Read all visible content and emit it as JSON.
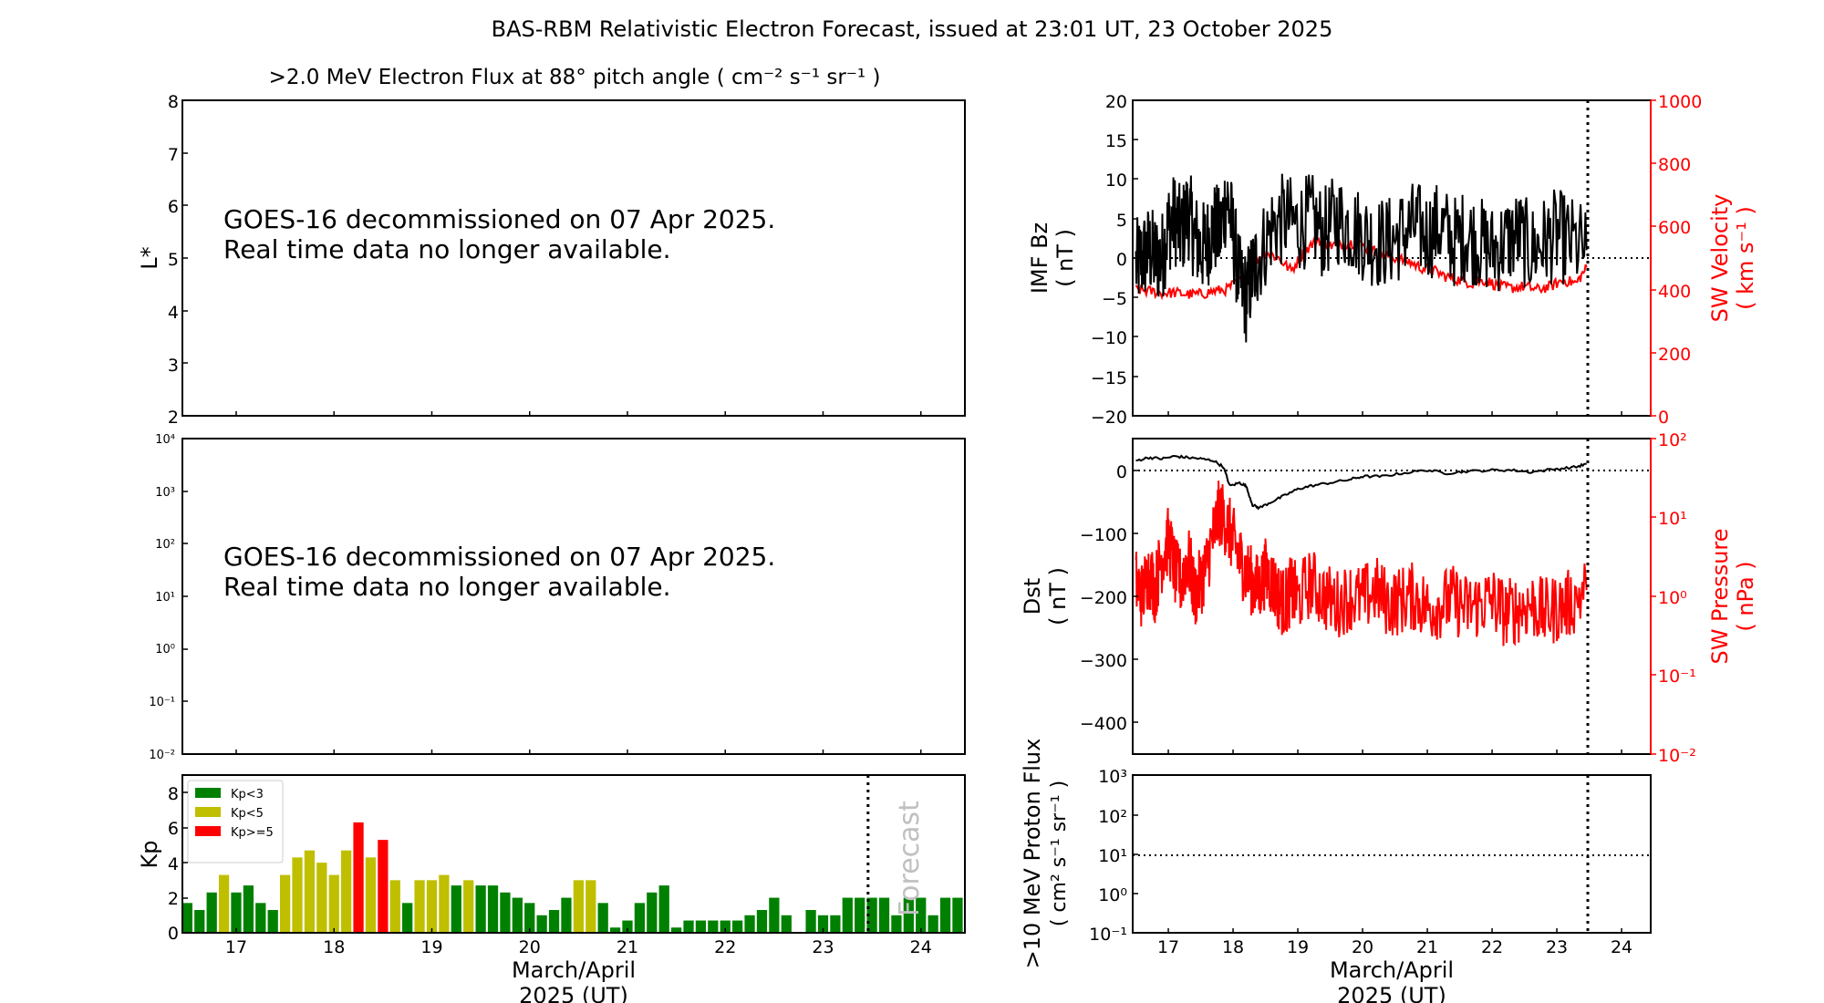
{
  "main_title": "BAS-RBM Relativistic Electron Forecast, issued at 23:01 UT, 23 October 2025",
  "x_axis": {
    "day_ticks": [
      "17",
      "18",
      "19",
      "20",
      "21",
      "22",
      "23",
      "24"
    ],
    "xlabel_line1": "March/April",
    "xlabel_line2": "2025 (UT)"
  },
  "lstar_panel": {
    "title": ">2.0 MeV Electron Flux at 88° pitch angle ( cm⁻² s⁻¹ sr⁻¹ )",
    "ylabel": "L*",
    "yticks": [
      "8",
      "7",
      "6",
      "5",
      "4",
      "3",
      "2"
    ],
    "message_line1": "GOES-16 decommissioned on 07 Apr 2025.",
    "message_line2": "Real time data no longer available."
  },
  "flux_panel": {
    "yticks": [
      "10⁴",
      "10³",
      "10²",
      "10¹",
      "10⁰",
      "10⁻¹",
      "10⁻²"
    ],
    "message_line1": "GOES-16 decommissioned on 07 Apr 2025.",
    "message_line2": "Real time data no longer available."
  },
  "kp_panel": {
    "ylabel": "Kp",
    "yticks": [
      "8",
      "6",
      "4",
      "2",
      "0"
    ],
    "forecast_label": "Forecast",
    "legend": [
      {
        "label": "Kp<3",
        "color": "#008000"
      },
      {
        "label": "Kp<5",
        "color": "#bfbf00"
      },
      {
        "label": "Kp>=5",
        "color": "#ff0000"
      }
    ]
  },
  "bz_panel": {
    "ylabel_line1": "IMF Bz",
    "ylabel_line2": "( nT )",
    "right_ylabel_line1": "SW Velocity",
    "right_ylabel_line2": "( km s⁻¹ )",
    "yticks": [
      "20",
      "15",
      "10",
      "5",
      "0",
      "−5",
      "−10",
      "−15",
      "−20"
    ],
    "right_yticks": [
      "1000",
      "800",
      "600",
      "400",
      "200",
      "0"
    ]
  },
  "dst_panel": {
    "ylabel_line1": "Dst",
    "ylabel_line2": "( nT )",
    "right_ylabel_line1": "SW Pressure",
    "right_ylabel_line2": "( nPa )",
    "yticks": [
      "0",
      "−100",
      "−200",
      "−300",
      "−400"
    ],
    "right_yticks": [
      "10²",
      "10¹",
      "10⁰",
      "10⁻¹",
      "10⁻²"
    ]
  },
  "proton_panel": {
    "ylabel_line1": ">10 MeV Proton Flux",
    "ylabel_line2": "( cm² s⁻¹ sr⁻¹ )",
    "yticks": [
      "10³",
      "10²",
      "10¹",
      "10⁰",
      "10⁻¹"
    ]
  },
  "chart_data": [
    {
      "type": "bar",
      "panel": "kp",
      "x_range_days": [
        16.45,
        24.45
      ],
      "ylim": [
        0,
        9
      ],
      "bar_width_days": 0.105,
      "forecast_start_day": 23.46,
      "thresholds": {
        "green_below": 3,
        "yellow_below": 5
      },
      "x_start_day": 16.5,
      "x_step_days": 0.125,
      "values": [
        1.7,
        1.3,
        2.3,
        3.3,
        2.3,
        2.7,
        1.7,
        1.3,
        3.3,
        4.3,
        4.7,
        4.0,
        3.3,
        4.7,
        6.3,
        4.3,
        5.3,
        3.0,
        1.7,
        3.0,
        3.0,
        3.3,
        2.7,
        3.0,
        2.7,
        2.7,
        2.3,
        2.0,
        1.7,
        1.0,
        1.3,
        2.0,
        3.0,
        3.0,
        1.7,
        0.3,
        0.7,
        1.7,
        2.3,
        2.7,
        0.3,
        0.7,
        0.7,
        0.7,
        0.7,
        0.7,
        1.0,
        1.3,
        2.0,
        1.0,
        0.0,
        1.3,
        1.0,
        1.0,
        2.0,
        2.0,
        2.0,
        2.0,
        1.0,
        2.0,
        2.0,
        1.0,
        2.0,
        2.0
      ]
    },
    {
      "type": "line",
      "panel": "bz_velocity",
      "x_range_days": [
        16.45,
        24.45
      ],
      "end_day": 23.46,
      "series": [
        {
          "name": "IMF Bz",
          "axis": "left",
          "ylim": [
            -20,
            20
          ],
          "color": "#000000",
          "x": [
            16.5,
            16.6,
            16.7,
            16.8,
            16.9,
            17.0,
            17.1,
            17.2,
            17.3,
            17.4,
            17.5,
            17.6,
            17.7,
            17.8,
            17.9,
            18.0,
            18.1,
            18.2,
            18.3,
            18.4,
            18.6,
            18.8,
            19.0,
            19.2,
            19.4,
            19.6,
            19.8,
            20.0,
            20.2,
            20.4,
            20.6,
            20.8,
            21.0,
            21.2,
            21.4,
            21.6,
            21.8,
            22.0,
            22.2,
            22.4,
            22.6,
            22.8,
            23.0,
            23.2,
            23.46
          ],
          "y": [
            -1,
            0,
            1,
            0,
            0,
            4,
            5,
            3,
            6,
            3,
            1,
            2,
            4,
            3,
            8,
            3,
            -3,
            -5,
            -2,
            0,
            4,
            5,
            4,
            5,
            3,
            5,
            4,
            3,
            2,
            2,
            3,
            4,
            3,
            4,
            2,
            3,
            2,
            1,
            2,
            3,
            1,
            2,
            3,
            2,
            1
          ]
        },
        {
          "name": "SW Velocity",
          "axis": "right",
          "ylim": [
            0,
            1000
          ],
          "color": "#ff0000",
          "x": [
            16.5,
            16.7,
            16.9,
            17.1,
            17.3,
            17.5,
            17.7,
            17.9,
            18.1,
            18.3,
            18.5,
            18.7,
            18.9,
            19.1,
            19.3,
            19.5,
            19.7,
            19.9,
            20.1,
            20.3,
            20.5,
            20.7,
            20.9,
            21.1,
            21.3,
            21.5,
            21.7,
            21.9,
            22.1,
            22.3,
            22.5,
            22.7,
            22.9,
            23.1,
            23.3,
            23.46
          ],
          "y": [
            400,
            395,
            390,
            390,
            385,
            385,
            395,
            400,
            430,
            480,
            520,
            500,
            460,
            520,
            560,
            540,
            545,
            550,
            530,
            510,
            500,
            490,
            470,
            460,
            440,
            430,
            420,
            430,
            410,
            405,
            410,
            400,
            410,
            430,
            420,
            470
          ]
        }
      ],
      "reference_lines": {
        "bz_zero": 0
      }
    },
    {
      "type": "line",
      "panel": "dst_pressure",
      "x_range_days": [
        16.45,
        24.45
      ],
      "end_day": 23.46,
      "series": [
        {
          "name": "Dst",
          "axis": "left",
          "ylim": [
            -450,
            50
          ],
          "color": "#000000",
          "x": [
            16.5,
            16.7,
            16.9,
            17.1,
            17.3,
            17.5,
            17.7,
            17.85,
            17.95,
            18.1,
            18.2,
            18.3,
            18.4,
            18.6,
            18.8,
            19.0,
            19.2,
            19.5,
            19.8,
            20.0,
            20.3,
            20.6,
            21.0,
            21.3,
            21.6,
            22.0,
            22.3,
            22.6,
            23.0,
            23.3,
            23.46
          ],
          "y": [
            15,
            20,
            18,
            22,
            20,
            18,
            15,
            5,
            -25,
            -20,
            -25,
            -55,
            -60,
            -50,
            -40,
            -30,
            -25,
            -20,
            -15,
            -10,
            -10,
            -5,
            0,
            -5,
            -2,
            0,
            0,
            -3,
            2,
            5,
            10
          ]
        },
        {
          "name": "SW Pressure",
          "axis": "right",
          "scale": "log",
          "ylim": [
            0.01,
            100
          ],
          "color": "#ff0000",
          "x": [
            16.5,
            16.6,
            16.7,
            16.8,
            16.9,
            17.0,
            17.1,
            17.2,
            17.3,
            17.4,
            17.5,
            17.6,
            17.7,
            17.8,
            17.9,
            18.0,
            18.1,
            18.2,
            18.3,
            18.4,
            18.5,
            18.6,
            18.7,
            18.8,
            18.9,
            19.0,
            19.2,
            19.4,
            19.6,
            19.8,
            20.0,
            20.2,
            20.4,
            20.6,
            20.8,
            21.0,
            21.2,
            21.4,
            21.6,
            21.8,
            22.0,
            22.2,
            22.4,
            22.6,
            22.8,
            23.0,
            23.2,
            23.46
          ],
          "y": [
            1.5,
            1.0,
            2.0,
            1.2,
            3.0,
            5.0,
            2.0,
            1.5,
            3.0,
            1.0,
            1.5,
            2.5,
            6.0,
            12.0,
            8.0,
            5.0,
            3.0,
            2.0,
            1.5,
            1.2,
            2.0,
            1.5,
            1.0,
            0.8,
            1.2,
            0.9,
            1.5,
            1.0,
            0.8,
            1.0,
            0.9,
            1.2,
            0.8,
            0.9,
            1.0,
            0.7,
            0.8,
            0.9,
            0.7,
            0.8,
            0.9,
            0.6,
            0.7,
            0.8,
            0.6,
            0.7,
            0.8,
            1.2
          ]
        }
      ],
      "reference_lines": {
        "dst_zero": 0
      }
    },
    {
      "type": "line",
      "panel": "proton_flux",
      "scale": "log",
      "x_range_days": [
        16.45,
        24.45
      ],
      "ylim": [
        0.1,
        1000
      ],
      "reference_lines": {
        "threshold": 10
      },
      "series": []
    }
  ]
}
